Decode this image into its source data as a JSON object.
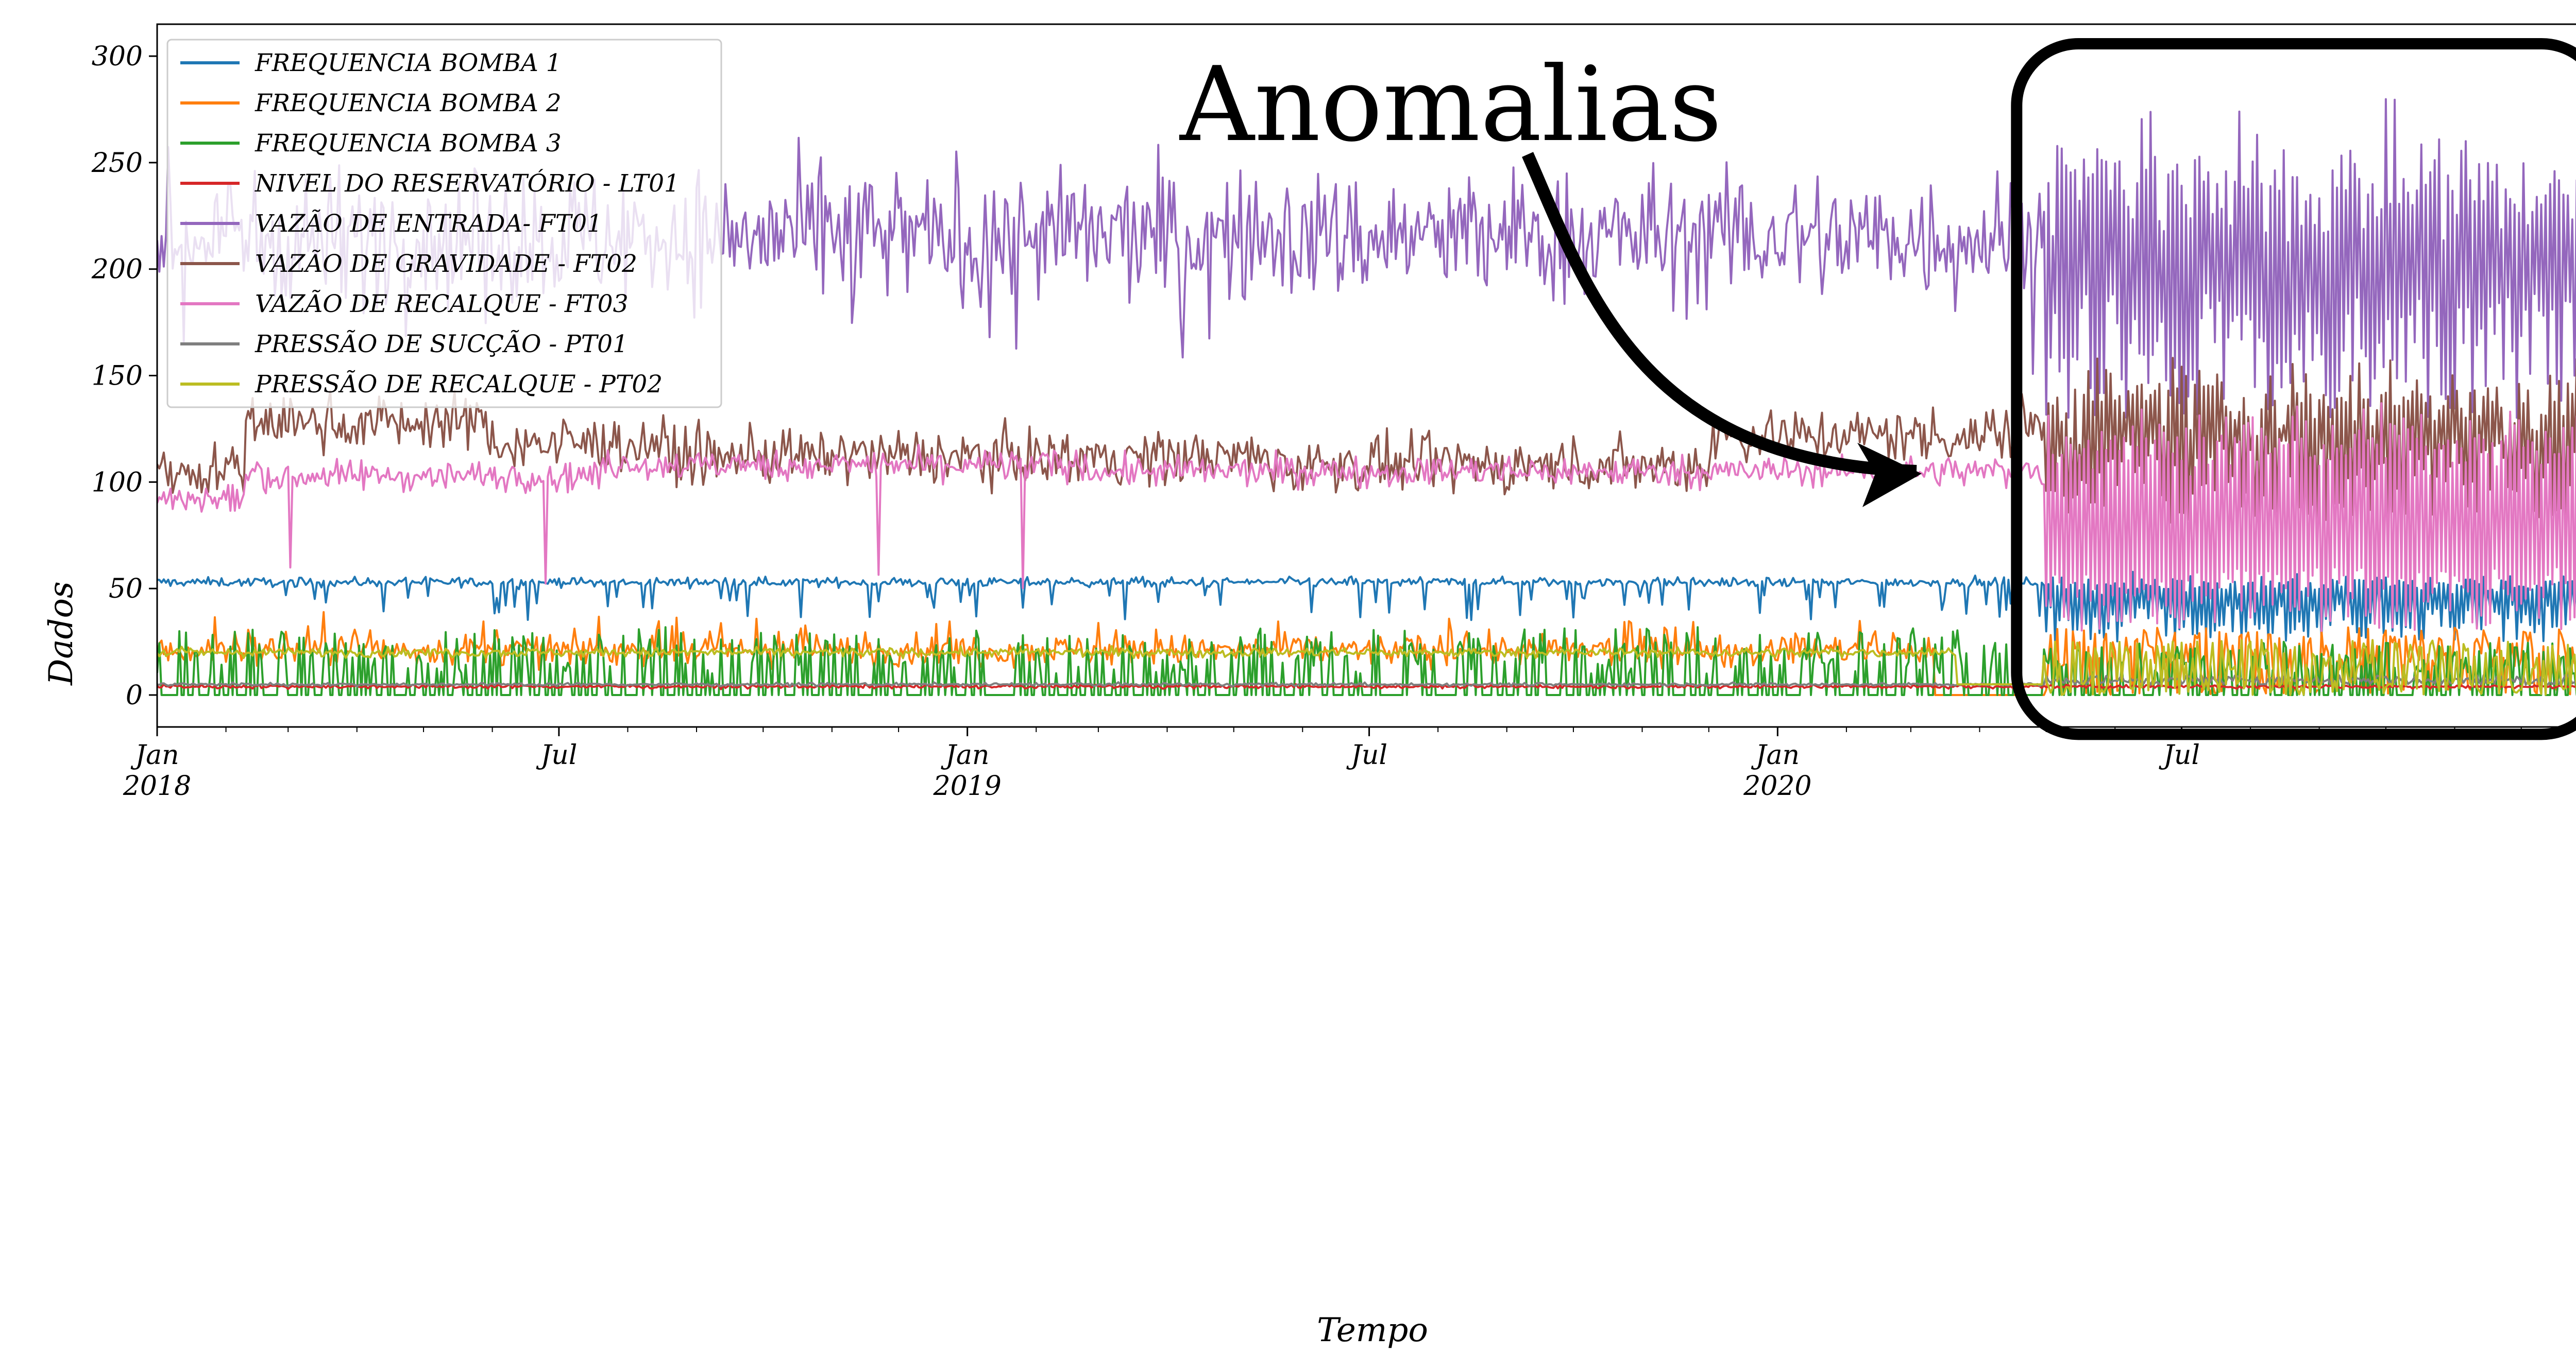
{
  "chart_data": {
    "type": "line",
    "xlabel": "Tempo",
    "ylabel": "Dados",
    "xlim": [
      "2018-01-01",
      "2020-12-31"
    ],
    "ylim": [
      -15,
      315
    ],
    "x_ticks": [
      {
        "date": "2018-01-01",
        "label": "Jan",
        "sublabel": "2018"
      },
      {
        "date": "2018-07-01",
        "label": "Jul",
        "sublabel": ""
      },
      {
        "date": "2019-01-01",
        "label": "Jan",
        "sublabel": "2019"
      },
      {
        "date": "2019-07-01",
        "label": "Jul",
        "sublabel": ""
      },
      {
        "date": "2020-01-01",
        "label": "Jan",
        "sublabel": "2020"
      },
      {
        "date": "2020-07-01",
        "label": "Jul",
        "sublabel": ""
      }
    ],
    "y_ticks": [
      0,
      50,
      100,
      150,
      200,
      250,
      300
    ],
    "grid": false,
    "legend_position": "top-left",
    "anomaly_start": "2020-05-01",
    "series": [
      {
        "name": "FREQUENCIA BOMBA 1",
        "color": "#1f77b4"
      },
      {
        "name": "FREQUENCIA BOMBA 2",
        "color": "#ff7f0e"
      },
      {
        "name": "FREQUENCIA BOMBA 3",
        "color": "#2ca02c"
      },
      {
        "name": "NIVEL DO RESERVATÓRIO - LT01",
        "color": "#d62728"
      },
      {
        "name": "VAZÃO DE ENTRADA- FT01",
        "color": "#9467bd"
      },
      {
        "name": "VAZÃO DE GRAVIDADE - FT02",
        "color": "#8c564b"
      },
      {
        "name": "VAZÃO DE RECALQUE - FT03",
        "color": "#e377c2"
      },
      {
        "name": "PRESSÃO DE SUCÇÃO - PT01",
        "color": "#7f7f7f"
      },
      {
        "name": "PRESSÃO DE RECALQUE - PT02",
        "color": "#bcbd22"
      }
    ]
  },
  "annotation": {
    "text": "Anomalias",
    "region": {
      "x_start": "2020-04-20",
      "x_end": "2020-12-31",
      "y_top": 315,
      "y_bottom": -10
    }
  }
}
